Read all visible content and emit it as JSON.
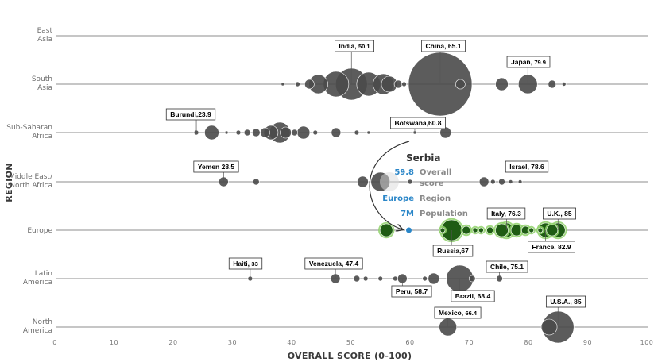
{
  "chart_data": {
    "type": "scatter",
    "subtype": "bubble",
    "xlabel": "OVERALL SCORE (0-100)",
    "ylabel": "REGION",
    "xlim": [
      0,
      100
    ],
    "xticks": [
      0,
      10,
      20,
      30,
      40,
      50,
      60,
      70,
      80,
      90,
      100
    ],
    "grid": false,
    "regions": [
      {
        "key": "east_asia",
        "lines": [
          "East",
          "Asia"
        ]
      },
      {
        "key": "south_asia",
        "lines": [
          "South",
          "Asia"
        ]
      },
      {
        "key": "ssa",
        "lines": [
          "Sub-Saharan",
          "Africa"
        ]
      },
      {
        "key": "mena",
        "lines": [
          "Middle East/",
          "North Africa"
        ]
      },
      {
        "key": "europe",
        "lines": [
          "Europe"
        ]
      },
      {
        "key": "latam",
        "lines": [
          "Latin",
          "America"
        ]
      },
      {
        "key": "na",
        "lines": [
          "North",
          "America"
        ]
      }
    ],
    "bubbles": {
      "east_asia": [],
      "south_asia": [
        {
          "x": 38.5,
          "r": 2
        },
        {
          "x": 41,
          "r": 3
        },
        {
          "x": 43,
          "r": 6
        },
        {
          "x": 44.5,
          "r": 12
        },
        {
          "x": 47.5,
          "r": 16
        },
        {
          "x": 50.1,
          "r": 20
        },
        {
          "x": 53,
          "r": 15
        },
        {
          "x": 55.5,
          "r": 13
        },
        {
          "x": 56.5,
          "r": 10
        },
        {
          "x": 58,
          "r": 5
        },
        {
          "x": 59,
          "r": 3
        },
        {
          "x": 65.1,
          "r": 40
        },
        {
          "x": 68.5,
          "r": 6
        },
        {
          "x": 75.5,
          "r": 8
        },
        {
          "x": 79.9,
          "r": 12
        },
        {
          "x": 84,
          "r": 5
        },
        {
          "x": 86,
          "r": 2.5
        }
      ],
      "ssa": [
        {
          "x": 23.9,
          "r": 3
        },
        {
          "x": 26.5,
          "r": 9
        },
        {
          "x": 29,
          "r": 2
        },
        {
          "x": 31,
          "r": 3
        },
        {
          "x": 32.5,
          "r": 4
        },
        {
          "x": 34,
          "r": 5
        },
        {
          "x": 35.5,
          "r": 6
        },
        {
          "x": 36.5,
          "r": 9
        },
        {
          "x": 38,
          "r": 13
        },
        {
          "x": 39,
          "r": 7
        },
        {
          "x": 40.5,
          "r": 4
        },
        {
          "x": 42,
          "r": 8
        },
        {
          "x": 44,
          "r": 3
        },
        {
          "x": 47.5,
          "r": 6
        },
        {
          "x": 51,
          "r": 3
        },
        {
          "x": 53,
          "r": 2
        },
        {
          "x": 60.8,
          "r": 2
        },
        {
          "x": 66,
          "r": 7
        }
      ],
      "mena": [
        {
          "x": 28.5,
          "r": 6
        },
        {
          "x": 34,
          "r": 4
        },
        {
          "x": 52,
          "r": 7
        },
        {
          "x": 55,
          "r": 12
        },
        {
          "x": 60,
          "r": 3
        },
        {
          "x": 72.5,
          "r": 6
        },
        {
          "x": 74,
          "r": 3
        },
        {
          "x": 75.5,
          "r": 4
        },
        {
          "x": 77,
          "r": 2.5
        },
        {
          "x": 78.6,
          "r": 2.5
        }
      ],
      "europe": [
        {
          "x": 56,
          "r": 8
        },
        {
          "x": 59.8,
          "r": 4,
          "highlight": true
        },
        {
          "x": 65.5,
          "r": 3
        },
        {
          "x": 67,
          "r": 13
        },
        {
          "x": 69.5,
          "r": 5
        },
        {
          "x": 71,
          "r": 3
        },
        {
          "x": 72,
          "r": 3
        },
        {
          "x": 73.5,
          "r": 4
        },
        {
          "x": 75.5,
          "r": 8
        },
        {
          "x": 76.3,
          "r": 9
        },
        {
          "x": 78,
          "r": 7
        },
        {
          "x": 79.5,
          "r": 5
        },
        {
          "x": 80.5,
          "r": 3
        },
        {
          "x": 82,
          "r": 3
        },
        {
          "x": 82.9,
          "r": 9
        },
        {
          "x": 84,
          "r": 7
        },
        {
          "x": 85,
          "r": 9
        }
      ],
      "latam": [
        {
          "x": 33,
          "r": 3
        },
        {
          "x": 47.4,
          "r": 6
        },
        {
          "x": 51,
          "r": 4
        },
        {
          "x": 52.5,
          "r": 3
        },
        {
          "x": 55,
          "r": 3
        },
        {
          "x": 57.5,
          "r": 3
        },
        {
          "x": 58.7,
          "r": 6
        },
        {
          "x": 62.5,
          "r": 3
        },
        {
          "x": 64,
          "r": 7
        },
        {
          "x": 68.4,
          "r": 17
        },
        {
          "x": 70.5,
          "r": 4
        },
        {
          "x": 75.1,
          "r": 4
        }
      ],
      "na": [
        {
          "x": 66.4,
          "r": 11
        },
        {
          "x": 83.5,
          "r": 10
        },
        {
          "x": 85,
          "r": 20
        }
      ]
    },
    "callouts": [
      {
        "region": "south_asia",
        "name": "India, ",
        "score": "50.1",
        "x": 50.1,
        "above": true
      },
      {
        "region": "south_asia",
        "name": "China, 65.1",
        "score": "",
        "x": 65.1,
        "above": true
      },
      {
        "region": "south_asia",
        "name": "Japan, ",
        "score": "79.9",
        "x": 79.9,
        "above": true
      },
      {
        "region": "ssa",
        "name": "Burundi,23.9",
        "score": "",
        "x": 23.9,
        "above": true
      },
      {
        "region": "ssa",
        "name": "Botswana,60.8",
        "score": "",
        "x": 60.8,
        "above": true
      },
      {
        "region": "mena",
        "name": "Yemen 28.5",
        "score": "",
        "x": 28.5,
        "above": true
      },
      {
        "region": "mena",
        "name": "Israel, 78.6",
        "score": "",
        "x": 78.6,
        "above": true
      },
      {
        "region": "europe",
        "name": "Italy, 76.3",
        "score": "",
        "x": 76.3,
        "above": true
      },
      {
        "region": "europe",
        "name": "U.K., 85",
        "score": "",
        "x": 85,
        "above": true
      },
      {
        "region": "europe",
        "name": "Russia,67",
        "score": "",
        "x": 67,
        "above": false
      },
      {
        "region": "europe",
        "name": "France, 82.9",
        "score": "",
        "x": 82.9,
        "above": false
      },
      {
        "region": "latam",
        "name": "Haiti, ",
        "score": "33",
        "x": 33,
        "above": true
      },
      {
        "region": "latam",
        "name": "Venezuela, 47.4",
        "score": "",
        "x": 47.4,
        "above": true
      },
      {
        "region": "latam",
        "name": "Chile, 75.1",
        "score": "",
        "x": 75.1,
        "above": true
      },
      {
        "region": "latam",
        "name": "Peru, 58.7",
        "score": "",
        "x": 58.7,
        "above": false
      },
      {
        "region": "latam",
        "name": "Brazil, 68.4",
        "score": "",
        "x": 68.4,
        "above": false
      },
      {
        "region": "na",
        "name": "Mexico, ",
        "score": "66.4",
        "x": 66.4,
        "above": true
      },
      {
        "region": "na",
        "name": "U.S.A., 85",
        "score": "",
        "x": 85,
        "above": true
      }
    ],
    "tooltip": {
      "country": "Serbia",
      "score": "59.8",
      "score_label_1": "Overall",
      "score_label_2": "score",
      "region": "Europe",
      "region_label": "Region",
      "population": "7M",
      "population_label": "Population"
    },
    "colors": {
      "bubble": "#4a4a4a",
      "europe_bubble": "#1f5c14",
      "europe_glow": "#8fd16a",
      "highlight": "#2a86c8",
      "region_line": "#8c8c8c"
    }
  }
}
